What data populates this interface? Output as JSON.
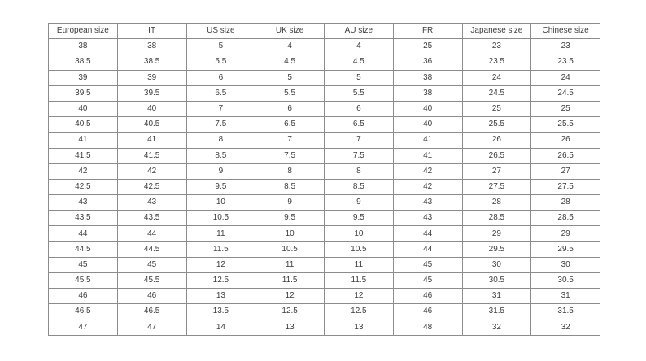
{
  "table": {
    "name": "shoe-size-conversion-table",
    "headers": [
      "European size",
      "IT",
      "US size",
      "UK size",
      "AU size",
      "FR",
      "Japanese size",
      "Chinese size"
    ],
    "rows": [
      [
        "38",
        "38",
        "5",
        "4",
        "4",
        "25",
        "23",
        "23"
      ],
      [
        "38.5",
        "38.5",
        "5.5",
        "4.5",
        "4.5",
        "36",
        "23.5",
        "23.5"
      ],
      [
        "39",
        "39",
        "6",
        "5",
        "5",
        "38",
        "24",
        "24"
      ],
      [
        "39.5",
        "39.5",
        "6.5",
        "5.5",
        "5.5",
        "38",
        "24.5",
        "24.5"
      ],
      [
        "40",
        "40",
        "7",
        "6",
        "6",
        "40",
        "25",
        "25"
      ],
      [
        "40.5",
        "40.5",
        "7.5",
        "6.5",
        "6.5",
        "40",
        "25.5",
        "25.5"
      ],
      [
        "41",
        "41",
        "8",
        "7",
        "7",
        "41",
        "26",
        "26"
      ],
      [
        "41.5",
        "41.5",
        "8.5",
        "7.5",
        "7.5",
        "41",
        "26.5",
        "26.5"
      ],
      [
        "42",
        "42",
        "9",
        "8",
        "8",
        "42",
        "27",
        "27"
      ],
      [
        "42.5",
        "42.5",
        "9.5",
        "8.5",
        "8.5",
        "42",
        "27.5",
        "27.5"
      ],
      [
        "43",
        "43",
        "10",
        "9",
        "9",
        "43",
        "28",
        "28"
      ],
      [
        "43.5",
        "43.5",
        "10.5",
        "9.5",
        "9.5",
        "43",
        "28.5",
        "28.5"
      ],
      [
        "44",
        "44",
        "11",
        "10",
        "10",
        "44",
        "29",
        "29"
      ],
      [
        "44.5",
        "44.5",
        "11.5",
        "10.5",
        "10.5",
        "44",
        "29.5",
        "29.5"
      ],
      [
        "45",
        "45",
        "12",
        "11",
        "11",
        "45",
        "30",
        "30"
      ],
      [
        "45.5",
        "45.5",
        "12.5",
        "11.5",
        "11.5",
        "45",
        "30.5",
        "30.5"
      ],
      [
        "46",
        "46",
        "13",
        "12",
        "12",
        "46",
        "31",
        "31"
      ],
      [
        "46.5",
        "46.5",
        "13.5",
        "12.5",
        "12.5",
        "46",
        "31.5",
        "31.5"
      ],
      [
        "47",
        "47",
        "14",
        "13",
        "13",
        "48",
        "32",
        "32"
      ]
    ],
    "colors": {
      "border": "#8c8c8c",
      "text": "#3d3d3d",
      "background": "#ffffff"
    }
  }
}
